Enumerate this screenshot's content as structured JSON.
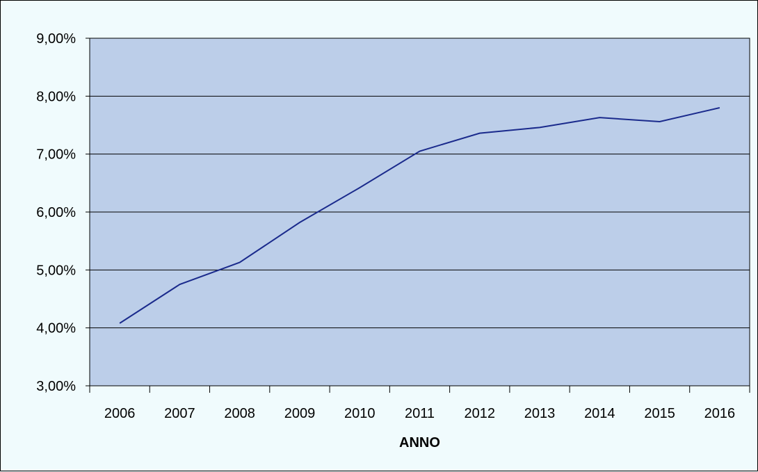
{
  "chart_data": {
    "type": "line",
    "title": "",
    "xlabel": "ANNO",
    "ylabel": "",
    "categories": [
      "2006",
      "2007",
      "2008",
      "2009",
      "2010",
      "2011",
      "2012",
      "2013",
      "2014",
      "2015",
      "2016"
    ],
    "series": [
      {
        "values": [
          4.08,
          4.75,
          5.13,
          5.82,
          6.42,
          7.05,
          7.36,
          7.46,
          7.63,
          7.56,
          7.8
        ]
      }
    ],
    "ylim": [
      3,
      9
    ],
    "yticks": [
      3,
      4,
      5,
      6,
      7,
      8,
      9
    ],
    "ytick_labels": [
      "3,00%",
      "4,00%",
      "5,00%",
      "6,00%",
      "7,00%",
      "8,00%",
      "9,00%"
    ],
    "grid": "horizontal",
    "legend": "none",
    "colors": {
      "plot_background": "#bccee9",
      "page_background": "#f0fbfd",
      "line": "#1a2a8c",
      "gridline": "#000000"
    }
  }
}
